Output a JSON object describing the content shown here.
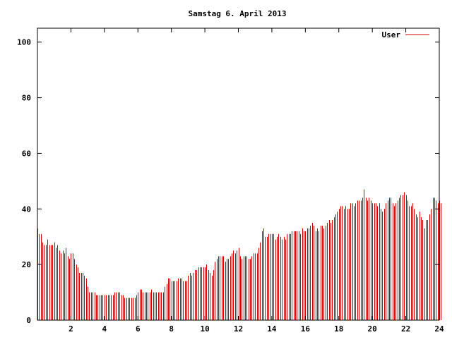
{
  "chart_data": {
    "type": "bar",
    "title": "Samstag 6. April 2013",
    "xlabel": "",
    "ylabel": "",
    "xlim": [
      0,
      24
    ],
    "ylim": [
      0,
      105
    ],
    "x_ticks": [
      2,
      4,
      6,
      8,
      10,
      12,
      14,
      16,
      18,
      20,
      22,
      24
    ],
    "y_ticks": [
      0,
      20,
      40,
      60,
      80,
      100
    ],
    "grid": false,
    "legend_position": "top-right",
    "colors": {
      "series": "#cc0000",
      "axis": "#000000",
      "background": "#ffffff"
    },
    "series": [
      {
        "name": "User",
        "x_start": 0,
        "x_step": 0.1,
        "values": [
          33,
          31,
          31,
          28,
          27,
          27,
          29,
          27,
          27,
          27,
          28,
          26,
          27,
          25,
          24,
          25,
          24,
          26,
          23,
          22,
          24,
          24,
          22,
          20,
          19,
          17,
          17,
          17,
          16,
          15,
          12,
          10,
          10,
          10,
          10,
          9,
          9,
          9,
          9,
          9,
          9,
          9,
          9,
          9,
          9,
          9,
          10,
          10,
          10,
          10,
          9,
          9,
          8,
          8,
          8,
          8,
          8,
          8,
          8,
          9,
          10,
          11,
          11,
          10,
          10,
          10,
          10,
          10,
          11,
          10,
          10,
          10,
          10,
          10,
          10,
          10,
          12,
          13,
          15,
          15,
          14,
          14,
          14,
          14,
          15,
          15,
          15,
          14,
          14,
          14,
          16,
          17,
          16,
          17,
          18,
          18,
          19,
          19,
          19,
          19,
          19,
          20,
          18,
          17,
          16,
          18,
          21,
          22,
          23,
          23,
          23,
          23,
          21,
          22,
          22,
          23,
          24,
          25,
          24,
          25,
          26,
          23,
          22,
          23,
          23,
          23,
          22,
          22,
          23,
          24,
          24,
          24,
          26,
          28,
          32,
          33,
          30,
          30,
          31,
          31,
          31,
          31,
          29,
          30,
          31,
          30,
          29,
          30,
          29,
          31,
          31,
          31,
          32,
          32,
          32,
          32,
          32,
          31,
          33,
          32,
          32,
          33,
          33,
          34,
          35,
          34,
          32,
          33,
          32,
          34,
          34,
          33,
          34,
          35,
          36,
          35,
          36,
          37,
          38,
          39,
          40,
          41,
          41,
          40,
          41,
          40,
          40,
          42,
          42,
          41,
          42,
          43,
          43,
          43,
          44,
          47,
          44,
          43,
          44,
          43,
          42,
          42,
          42,
          41,
          42,
          40,
          39,
          40,
          42,
          43,
          44,
          44,
          42,
          41,
          42,
          43,
          44,
          45,
          45,
          46,
          45,
          43,
          41,
          41,
          42,
          40,
          38,
          37,
          39,
          37,
          36,
          33,
          36,
          36,
          38,
          40,
          44,
          44,
          43,
          42,
          43,
          42
        ]
      }
    ]
  }
}
